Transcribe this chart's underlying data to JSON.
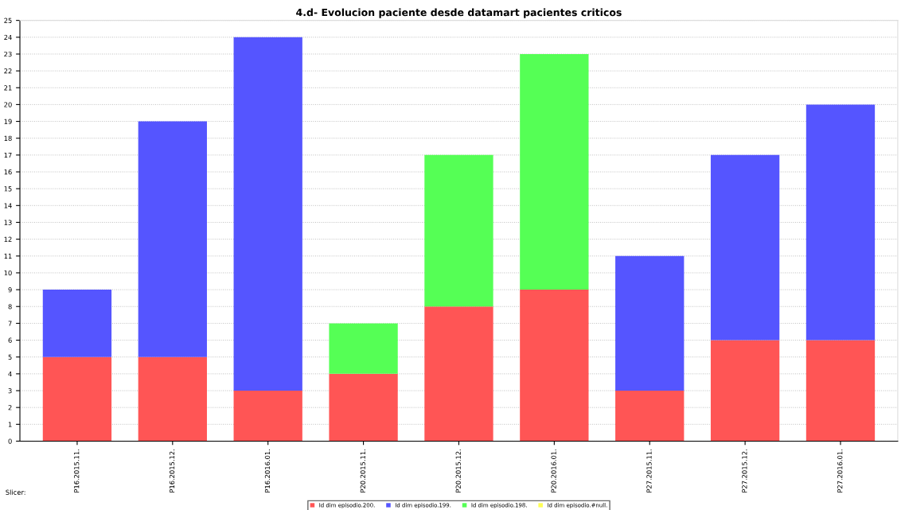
{
  "chart_data": {
    "type": "bar",
    "title": "4.d- Evolucion paciente desde datamart pacientes criticos",
    "stacked": true,
    "categories": [
      "P16.2015.11.",
      "P16.2015.12.",
      "P16.2016.01.",
      "P20.2015.11.",
      "P20.2015.12.",
      "P20.2016.01.",
      "P27.2015.11.",
      "P27.2015.12.",
      "P27.2016.01."
    ],
    "series": [
      {
        "name": "Id dim episodio.200.",
        "color": "#ff5555",
        "values": [
          5,
          5,
          3,
          4,
          8,
          9,
          3,
          6,
          6
        ]
      },
      {
        "name": "Id dim episodio.199.",
        "color": "#5555ff",
        "values": [
          4,
          14,
          21,
          null,
          null,
          null,
          8,
          11,
          14
        ]
      },
      {
        "name": "Id dim episodio.198.",
        "color": "#55ff55",
        "values": [
          null,
          null,
          null,
          3,
          9,
          14,
          null,
          null,
          null
        ]
      },
      {
        "name": "Id dim episodio.#null.",
        "color": "#ffff55",
        "values": [
          null,
          null,
          null,
          null,
          null,
          null,
          null,
          null,
          null
        ]
      }
    ],
    "ylim": [
      0,
      25
    ],
    "yticks": [
      0,
      1,
      2,
      3,
      4,
      5,
      6,
      7,
      8,
      9,
      10,
      11,
      12,
      13,
      14,
      15,
      16,
      17,
      18,
      19,
      20,
      21,
      22,
      23,
      24,
      25
    ],
    "grid": "y",
    "legend": "bottom",
    "annotations": [
      "Slicer:"
    ]
  }
}
